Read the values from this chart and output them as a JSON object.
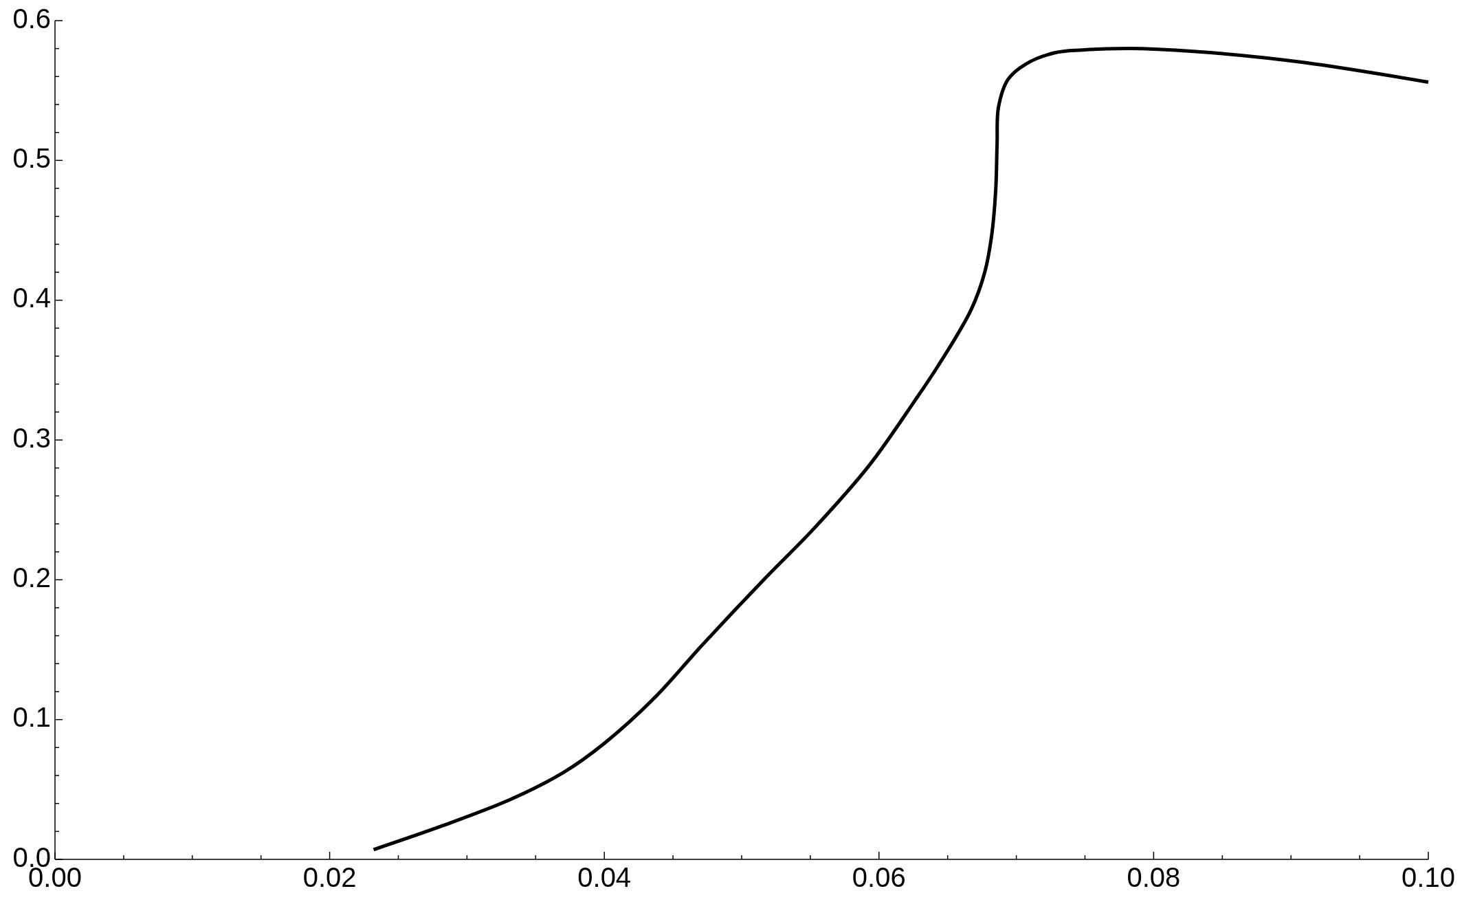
{
  "chart_data": {
    "type": "line",
    "xlim": [
      0,
      0.1
    ],
    "ylim": [
      0,
      0.6
    ],
    "xticks": [
      {
        "value": 0,
        "label": "0.00"
      },
      {
        "value": 0.005,
        "label": null
      },
      {
        "value": 0.01,
        "label": null
      },
      {
        "value": 0.015,
        "label": null
      },
      {
        "value": 0.02,
        "label": "0.02"
      },
      {
        "value": 0.025,
        "label": null
      },
      {
        "value": 0.03,
        "label": null
      },
      {
        "value": 0.035,
        "label": null
      },
      {
        "value": 0.04,
        "label": "0.04"
      },
      {
        "value": 0.045,
        "label": null
      },
      {
        "value": 0.05,
        "label": null
      },
      {
        "value": 0.055,
        "label": null
      },
      {
        "value": 0.06,
        "label": "0.06"
      },
      {
        "value": 0.065,
        "label": null
      },
      {
        "value": 0.07,
        "label": null
      },
      {
        "value": 0.075,
        "label": null
      },
      {
        "value": 0.08,
        "label": "0.08"
      },
      {
        "value": 0.085,
        "label": null
      },
      {
        "value": 0.09,
        "label": null
      },
      {
        "value": 0.095,
        "label": null
      },
      {
        "value": 0.1,
        "label": "0.10"
      }
    ],
    "yticks": [
      {
        "value": 0,
        "label": "0.0"
      },
      {
        "value": 0.02,
        "label": null
      },
      {
        "value": 0.04,
        "label": null
      },
      {
        "value": 0.06,
        "label": null
      },
      {
        "value": 0.08,
        "label": null
      },
      {
        "value": 0.1,
        "label": "0.1"
      },
      {
        "value": 0.12,
        "label": null
      },
      {
        "value": 0.14,
        "label": null
      },
      {
        "value": 0.16,
        "label": null
      },
      {
        "value": 0.18,
        "label": null
      },
      {
        "value": 0.2,
        "label": "0.2"
      },
      {
        "value": 0.22,
        "label": null
      },
      {
        "value": 0.24,
        "label": null
      },
      {
        "value": 0.26,
        "label": null
      },
      {
        "value": 0.28,
        "label": null
      },
      {
        "value": 0.3,
        "label": "0.3"
      },
      {
        "value": 0.32,
        "label": null
      },
      {
        "value": 0.34,
        "label": null
      },
      {
        "value": 0.36,
        "label": null
      },
      {
        "value": 0.38,
        "label": null
      },
      {
        "value": 0.4,
        "label": "0.4"
      },
      {
        "value": 0.42,
        "label": null
      },
      {
        "value": 0.44,
        "label": null
      },
      {
        "value": 0.46,
        "label": null
      },
      {
        "value": 0.48,
        "label": null
      },
      {
        "value": 0.5,
        "label": "0.5"
      },
      {
        "value": 0.52,
        "label": null
      },
      {
        "value": 0.54,
        "label": null
      },
      {
        "value": 0.56,
        "label": null
      },
      {
        "value": 0.58,
        "label": null
      },
      {
        "value": 0.6,
        "label": "0.6"
      }
    ],
    "grid": false,
    "marker": "none",
    "line_style": "solid",
    "series": [
      {
        "color": "#000000",
        "x": [
          0.0232,
          0.0282,
          0.0332,
          0.037,
          0.04,
          0.0437,
          0.0471,
          0.0518,
          0.0552,
          0.0593,
          0.0626,
          0.0643,
          0.0667,
          0.0677,
          0.0682,
          0.0685,
          0.0686,
          0.0687,
          0.0694,
          0.0707,
          0.0728,
          0.0748,
          0.0772,
          0.0792,
          0.0843,
          0.091,
          0.1
        ],
        "values": [
          0.007,
          0.024,
          0.043,
          0.062,
          0.083,
          0.116,
          0.153,
          0.202,
          0.236,
          0.282,
          0.328,
          0.353,
          0.393,
          0.42,
          0.446,
          0.479,
          0.512,
          0.538,
          0.558,
          0.569,
          0.577,
          0.579,
          0.58,
          0.58,
          0.577,
          0.57,
          0.556
        ]
      }
    ]
  }
}
